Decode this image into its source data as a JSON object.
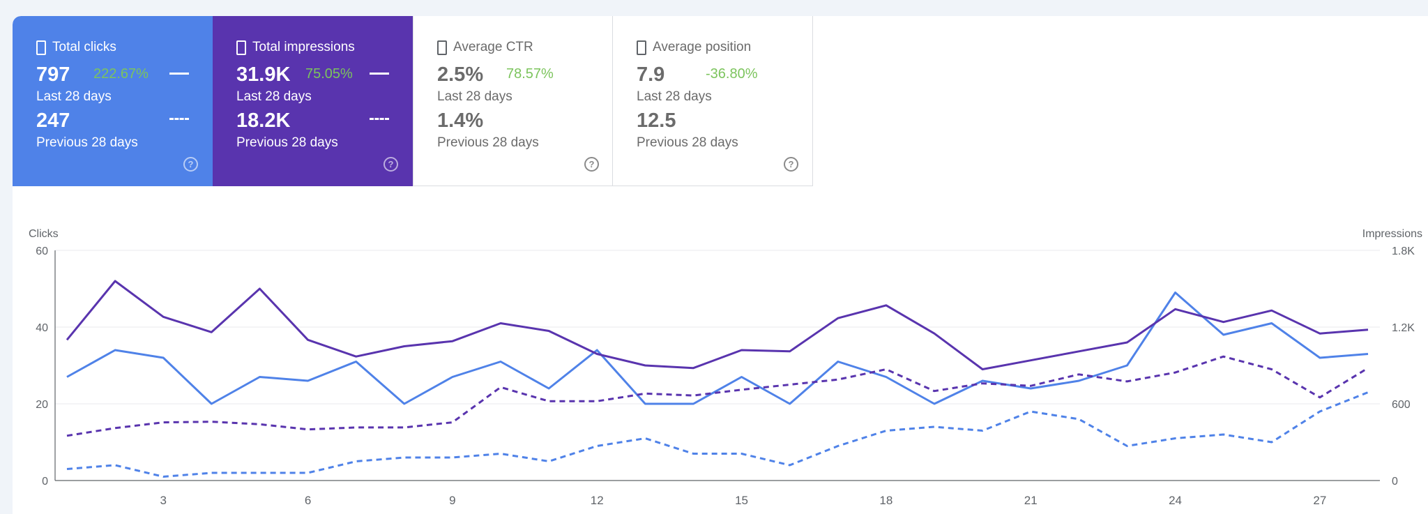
{
  "cards": [
    {
      "id": "clicks",
      "title": "Total clicks",
      "current": "797",
      "change": "222.67%",
      "current_label": "Last 28 days",
      "previous": "247",
      "previous_label": "Previous 28 days",
      "help": "?"
    },
    {
      "id": "impressions",
      "title": "Total impressions",
      "current": "31.9K",
      "change": "75.05%",
      "current_label": "Last 28 days",
      "previous": "18.2K",
      "previous_label": "Previous 28 days",
      "help": "?"
    },
    {
      "id": "ctr",
      "title": "Average CTR",
      "current": "2.5%",
      "change": "78.57%",
      "current_label": "Last 28 days",
      "previous": "1.4%",
      "previous_label": "Previous 28 days",
      "help": "?"
    },
    {
      "id": "position",
      "title": "Average position",
      "current": "7.9",
      "change": "-36.80%",
      "current_label": "Last 28 days",
      "previous": "12.5",
      "previous_label": "Previous 28 days",
      "help": "?"
    }
  ],
  "colors": {
    "clicks": "#4f82e8",
    "impressions": "#5934ae",
    "change_positive": "#7cc45d",
    "grid": "#e8eaed",
    "axis_text": "#5f6368"
  },
  "icons": {
    "checkbox": "checkbox-icon",
    "help": "help-circle-icon"
  },
  "chart_data": {
    "type": "line",
    "ylabel_left": "Clicks",
    "ylabel_right": "Impressions",
    "y_left_ticks": [
      "0",
      "20",
      "40",
      "60"
    ],
    "y_right_ticks": [
      "0",
      "600",
      "1.2K",
      "1.8K"
    ],
    "ylim_left": [
      0,
      60
    ],
    "ylim_right": [
      0,
      1800
    ],
    "x": [
      1,
      2,
      3,
      4,
      5,
      6,
      7,
      8,
      9,
      10,
      11,
      12,
      13,
      14,
      15,
      16,
      17,
      18,
      19,
      20,
      21,
      22,
      23,
      24,
      25,
      26,
      27,
      28
    ],
    "x_ticks": [
      "3",
      "6",
      "9",
      "12",
      "15",
      "18",
      "21",
      "24",
      "27"
    ],
    "grid": true,
    "series": [
      {
        "key": "clicks_current",
        "axis": "left",
        "style": "solid",
        "color": "#4f82e8",
        "values": [
          27,
          34,
          32,
          20,
          27,
          26,
          31,
          20,
          27,
          31,
          24,
          34,
          20,
          20,
          27,
          20,
          31,
          27,
          20,
          26,
          24,
          26,
          30,
          49,
          38,
          41,
          32,
          33
        ]
      },
      {
        "key": "clicks_previous",
        "axis": "left",
        "style": "dashed",
        "color": "#4f82e8",
        "values": [
          3,
          4,
          1,
          2,
          2,
          2,
          5,
          6,
          6,
          7,
          5,
          9,
          11,
          7,
          7,
          4,
          9,
          13,
          14,
          13,
          18,
          16,
          9,
          11,
          12,
          10,
          18,
          23
        ]
      },
      {
        "key": "impressions_current",
        "axis": "right",
        "style": "solid",
        "color": "#5934ae",
        "values": [
          1100,
          1560,
          1280,
          1160,
          1500,
          1100,
          970,
          1050,
          1090,
          1230,
          1170,
          990,
          900,
          880,
          1020,
          1010,
          1270,
          1370,
          1150,
          870,
          940,
          1010,
          1080,
          1340,
          1240,
          1330,
          1150,
          1180
        ]
      },
      {
        "key": "impressions_previous",
        "axis": "right",
        "style": "dashed",
        "color": "#5934ae",
        "values": [
          350,
          410,
          455,
          460,
          440,
          400,
          415,
          415,
          455,
          730,
          620,
          620,
          680,
          665,
          710,
          750,
          790,
          870,
          700,
          760,
          740,
          830,
          775,
          845,
          970,
          870,
          650,
          880
        ]
      }
    ]
  }
}
